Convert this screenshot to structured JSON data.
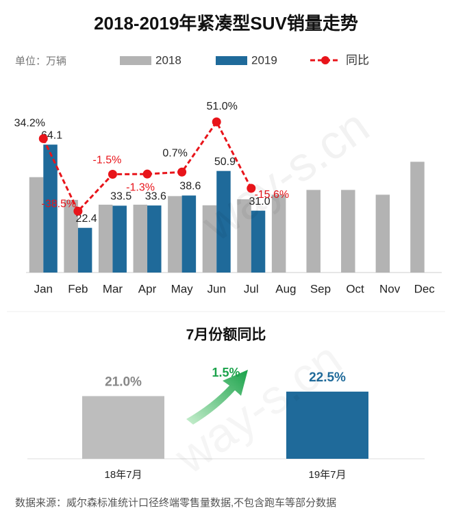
{
  "chart_data": [
    {
      "type": "bar-line",
      "title": "2018-2019年紧凑型SUV销量走势",
      "unit_label": "单位：万辆",
      "categories": [
        "Jan",
        "Feb",
        "Mar",
        "Apr",
        "May",
        "Jun",
        "Jul",
        "Aug",
        "Sep",
        "Oct",
        "Nov",
        "Dec"
      ],
      "ylim": [
        0,
        70
      ],
      "y2lim": [
        -100,
        40
      ],
      "series": [
        {
          "name": "2018",
          "color": "#b3b3b3",
          "values": [
            47.8,
            36.4,
            34.0,
            34.0,
            38.3,
            33.7,
            36.7,
            39.0,
            41.4,
            41.4,
            39.0,
            55.5
          ]
        },
        {
          "name": "2019",
          "color": "#1f6a9a",
          "values": [
            64.1,
            22.4,
            33.5,
            33.6,
            38.6,
            50.9,
            31.0,
            null,
            null,
            null,
            null,
            null
          ],
          "value_labels": [
            "64.1",
            "22.4",
            "33.5",
            "33.6",
            "38.6",
            "50.9",
            "31.0",
            null,
            null,
            null,
            null,
            null
          ]
        },
        {
          "name": "同比",
          "color": "#e8141a",
          "axis": "y2",
          "values": [
            34.2,
            -38.5,
            -1.5,
            -1.3,
            0.7,
            51.0,
            -15.6,
            null,
            null,
            null,
            null,
            null
          ],
          "value_labels": [
            "34.2%",
            "-38.5%",
            "-1.5%",
            "-1.3%",
            "0.7%",
            "51.0%",
            "-15.6%",
            null,
            null,
            null,
            null,
            null
          ]
        }
      ]
    },
    {
      "type": "bar",
      "title": "7月份额同比",
      "categories": [
        "18年7月",
        "19年7月"
      ],
      "values": [
        21.0,
        22.5
      ],
      "value_labels": [
        "21.0%",
        "22.5%"
      ],
      "colors": [
        "#bdbdbd",
        "#1f6a9a"
      ],
      "ylim": [
        0,
        25
      ],
      "annotation": "1.5%"
    }
  ],
  "footer": "数据来源：威尔森标准统计口径终端零售量数据,不包含跑车等部分数据",
  "watermark": "way-s.cn"
}
